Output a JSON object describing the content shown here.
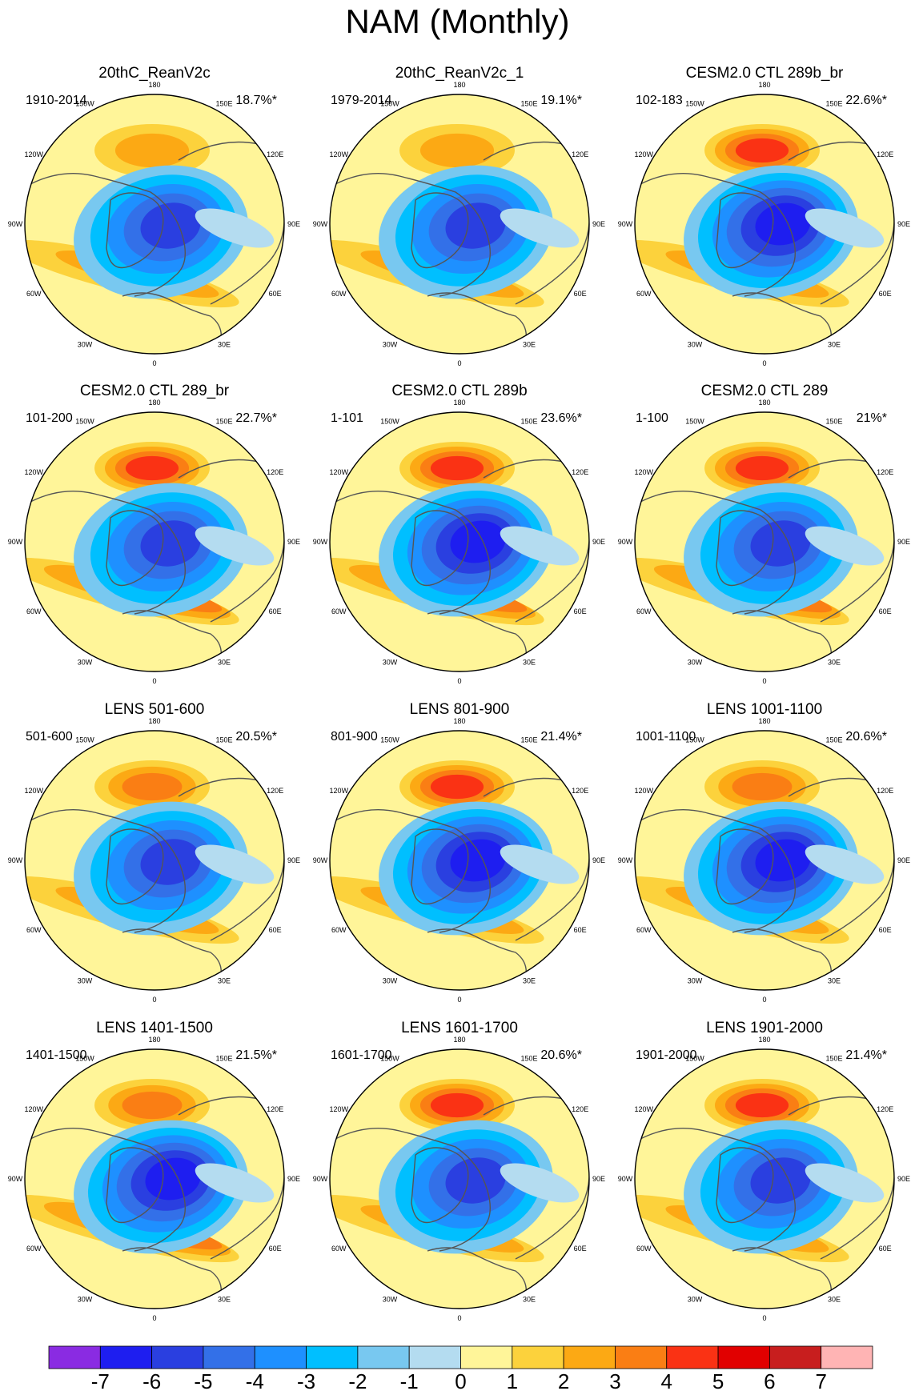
{
  "title": "NAM (Monthly)",
  "lon_labels": [
    "180",
    "150E",
    "120E",
    "90E",
    "60E",
    "30E",
    "0",
    "30W",
    "60W",
    "90W",
    "120W",
    "150W"
  ],
  "chart_data": {
    "type": "polar-contour-map-grid",
    "title": "NAM (Monthly)",
    "projection": "north polar stereographic",
    "panels": [
      {
        "title": "20thC_ReanV2c",
        "period": "1910-2014",
        "variance": "18.7%*",
        "pole_min": -5,
        "pacific_max": 2,
        "atlantic_max": 2
      },
      {
        "title": "20thC_ReanV2c_1",
        "period": "1979-2014",
        "variance": "19.1%*",
        "pole_min": -5,
        "pacific_max": 2,
        "atlantic_max": 2
      },
      {
        "title": "CESM2.0 CTL 289b_br",
        "period": "102-183",
        "variance": "22.6%*",
        "pole_min": -6,
        "pacific_max": 4,
        "atlantic_max": 2
      },
      {
        "title": "CESM2.0 CTL 289_br",
        "period": "101-200",
        "variance": "22.7%*",
        "pole_min": -5,
        "pacific_max": 4,
        "atlantic_max": 3
      },
      {
        "title": "CESM2.0 CTL 289b",
        "period": "1-101",
        "variance": "23.6%*",
        "pole_min": -6,
        "pacific_max": 4,
        "atlantic_max": 3
      },
      {
        "title": "CESM2.0 CTL 289",
        "period": "1-100",
        "variance": "21%*",
        "pole_min": -5,
        "pacific_max": 4,
        "atlantic_max": 3
      },
      {
        "title": "LENS 501-600",
        "period": "501-600",
        "variance": "20.5%*",
        "pole_min": -5,
        "pacific_max": 3,
        "atlantic_max": 2
      },
      {
        "title": "LENS 801-900",
        "period": "801-900",
        "variance": "21.4%*",
        "pole_min": -6,
        "pacific_max": 4,
        "atlantic_max": 2
      },
      {
        "title": "LENS 1001-1100",
        "period": "1001-1100",
        "variance": "20.6%*",
        "pole_min": -6,
        "pacific_max": 3,
        "atlantic_max": 2
      },
      {
        "title": "LENS 1401-1500",
        "period": "1401-1500",
        "variance": "21.5%*",
        "pole_min": -6,
        "pacific_max": 3,
        "atlantic_max": 3
      },
      {
        "title": "LENS 1601-1700",
        "period": "1601-1700",
        "variance": "20.6%*",
        "pole_min": -5,
        "pacific_max": 4,
        "atlantic_max": 2
      },
      {
        "title": "LENS 1901-2000",
        "period": "1901-2000",
        "variance": "21.4%*",
        "pole_min": -5,
        "pacific_max": 4,
        "atlantic_max": 2
      }
    ],
    "colorbar": {
      "levels": [
        -7,
        -6,
        -5,
        -4,
        -3,
        -2,
        -1,
        0,
        1,
        2,
        3,
        4,
        5,
        6,
        7
      ],
      "colors": [
        "#8a2be2",
        "#1e1ef0",
        "#2a3fe0",
        "#3370e8",
        "#1e90ff",
        "#00bfff",
        "#78c8f0",
        "#b4dcf0",
        "#fff599",
        "#fcd23c",
        "#fca914",
        "#fa7e14",
        "#fa3214",
        "#e10000",
        "#c81e1e",
        "#ffb4b4"
      ]
    }
  }
}
